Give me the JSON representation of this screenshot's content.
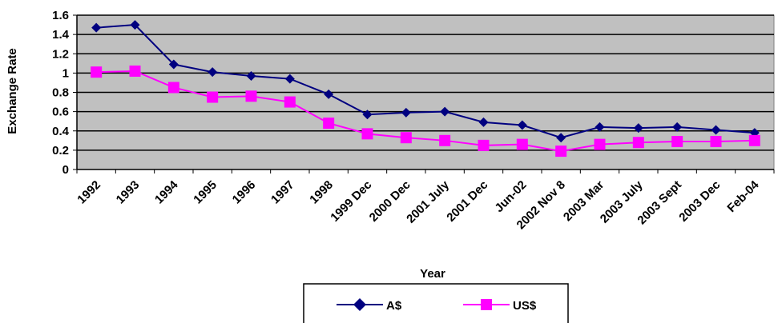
{
  "chart_data": {
    "type": "line",
    "categories": [
      "1992",
      "1993",
      "1994",
      "1995",
      "1996",
      "1997",
      "1998",
      "1999 Dec",
      "2000 Dec",
      "2001 July",
      "2001 Dec",
      "Jun-02",
      "2002 Nov 8",
      "2003 Mar",
      "2003 July",
      "2003 Sept",
      "2003 Dec",
      "Feb-04"
    ],
    "series": [
      {
        "name": "A$",
        "color": "#000080",
        "marker": "diamond",
        "values": [
          1.47,
          1.5,
          1.09,
          1.01,
          0.97,
          0.94,
          0.78,
          0.57,
          0.59,
          0.6,
          0.49,
          0.46,
          0.33,
          0.44,
          0.43,
          0.44,
          0.41,
          0.38
        ]
      },
      {
        "name": "US$",
        "color": "#ff00ff",
        "marker": "square",
        "values": [
          1.01,
          1.02,
          0.85,
          0.75,
          0.76,
          0.7,
          0.48,
          0.37,
          0.33,
          0.3,
          0.25,
          0.26,
          0.19,
          0.26,
          0.28,
          0.29,
          0.29,
          0.3
        ]
      }
    ],
    "title": "",
    "xlabel": "Year",
    "ylabel": "Exchange Rate",
    "ylim": [
      0,
      1.6
    ],
    "yticks": [
      "0",
      "0.2",
      "0.4",
      "0.6",
      "0.8",
      "1",
      "1.2",
      "1.4",
      "1.6"
    ],
    "grid": true,
    "plot_background": "#c0c0c0",
    "legend_position": "bottom"
  }
}
